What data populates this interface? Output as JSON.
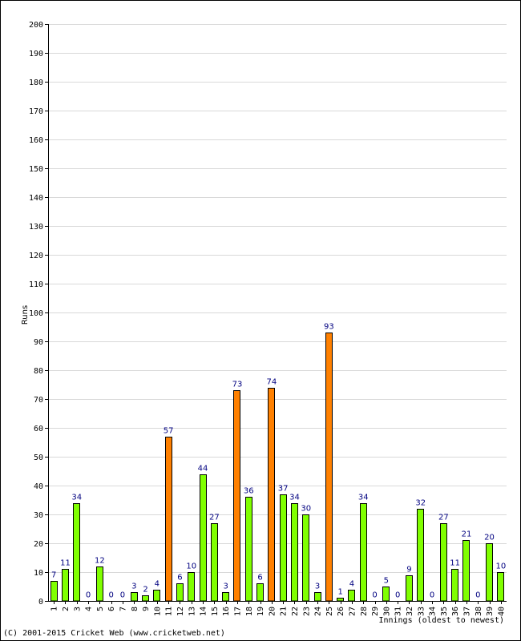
{
  "chart_data": {
    "type": "bar",
    "xlabel": "Innings (oldest to newest)",
    "ylabel": "Runs",
    "ylim": [
      0,
      200
    ],
    "yticks": [
      0,
      10,
      20,
      30,
      40,
      50,
      60,
      70,
      80,
      90,
      100,
      110,
      120,
      130,
      140,
      150,
      160,
      170,
      180,
      190,
      200
    ],
    "grid": true,
    "categories": [
      "1",
      "2",
      "3",
      "4",
      "5",
      "6",
      "7",
      "8",
      "9",
      "10",
      "11",
      "12",
      "13",
      "14",
      "15",
      "16",
      "17",
      "18",
      "19",
      "20",
      "21",
      "22",
      "23",
      "24",
      "25",
      "26",
      "27",
      "28",
      "29",
      "30",
      "31",
      "32",
      "33",
      "34",
      "35",
      "36",
      "37",
      "38",
      "39",
      "40"
    ],
    "values": [
      7,
      11,
      34,
      0,
      12,
      0,
      0,
      3,
      2,
      4,
      57,
      6,
      10,
      44,
      27,
      3,
      73,
      36,
      6,
      74,
      37,
      34,
      30,
      3,
      93,
      1,
      4,
      34,
      0,
      5,
      0,
      9,
      32,
      0,
      27,
      11,
      21,
      0,
      20,
      10
    ],
    "colors": {
      "below_50": "#80ff00",
      "fifty_plus": "#ff8000",
      "bar_outline": "#000000",
      "grid": "#d9d9d9",
      "data_label": "#000080"
    },
    "fifty_threshold": 50
  },
  "footer": {
    "copyright": "(C) 2001-2015 Cricket Web (www.cricketweb.net)"
  }
}
